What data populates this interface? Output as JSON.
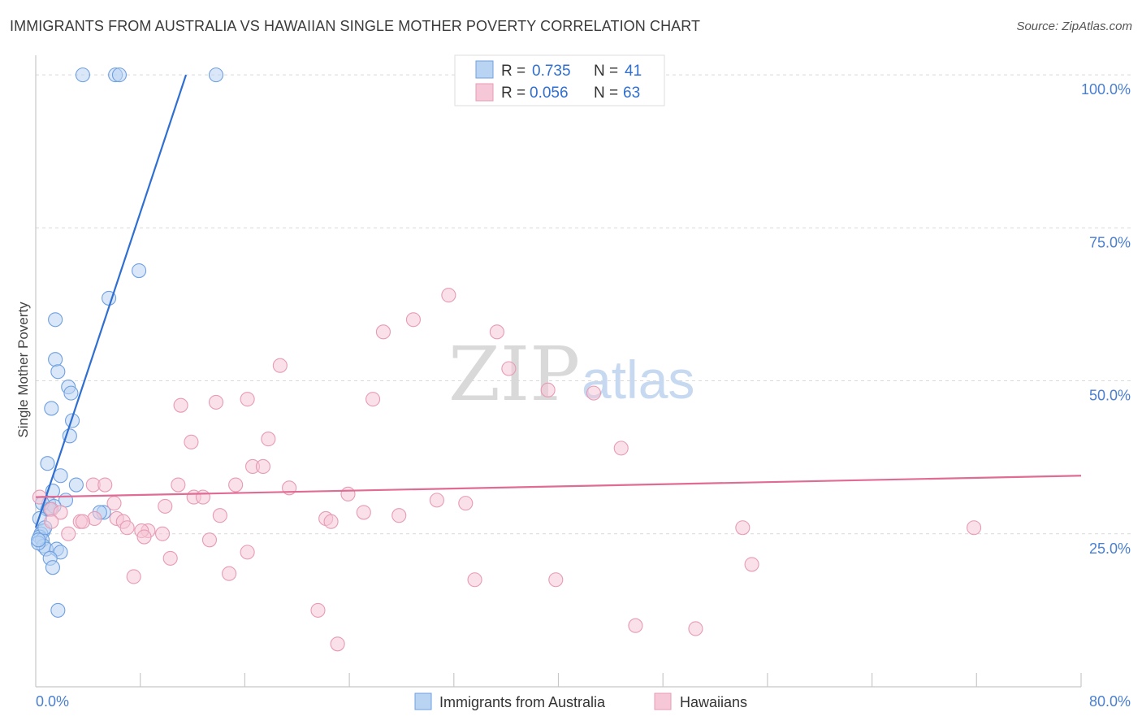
{
  "header": {
    "title": "IMMIGRANTS FROM AUSTRALIA VS HAWAIIAN SINGLE MOTHER POVERTY CORRELATION CHART",
    "source": "Source: ZipAtlas.com"
  },
  "watermark": {
    "zip": "ZIP",
    "atlas": "atlas"
  },
  "chart_data": {
    "type": "scatter",
    "title": "IMMIGRANTS FROM AUSTRALIA VS HAWAIIAN SINGLE MOTHER POVERTY CORRELATION CHART",
    "xlabel": "",
    "ylabel": "Single Mother Poverty",
    "xlim": [
      0,
      80
    ],
    "ylim": [
      0,
      104
    ],
    "x_tick_labels": {
      "left": "0.0%",
      "right": "80.0%"
    },
    "y_ticks": [
      {
        "value": 25,
        "label": "25.0%"
      },
      {
        "value": 50,
        "label": "50.0%"
      },
      {
        "value": 75,
        "label": "75.0%"
      },
      {
        "value": 100,
        "label": "100.0%"
      }
    ],
    "grid": true,
    "legend_position": "top-center",
    "stats_legend": [
      {
        "r_label": "R =",
        "r_value": "0.735",
        "n_label": "N =",
        "n_value": "41"
      },
      {
        "r_label": "R =",
        "r_value": "0.056",
        "n_label": "N =",
        "n_value": "63"
      }
    ],
    "series": [
      {
        "name": "Immigrants from Australia",
        "color": "#6fa0e0",
        "fill": "#b9d3f3",
        "trend_color": "#2f6fd1",
        "trend": {
          "x0": 0,
          "y0": 26,
          "x1": 11.5,
          "y1": 100
        },
        "points": [
          [
            3.6,
            100
          ],
          [
            6.1,
            100
          ],
          [
            6.4,
            100
          ],
          [
            13.8,
            100
          ],
          [
            7.9,
            68
          ],
          [
            5.6,
            63.5
          ],
          [
            1.5,
            60
          ],
          [
            1.5,
            53.5
          ],
          [
            1.7,
            51.5
          ],
          [
            2.5,
            49
          ],
          [
            2.7,
            48
          ],
          [
            1.2,
            45.5
          ],
          [
            2.8,
            43.5
          ],
          [
            2.6,
            41
          ],
          [
            0.9,
            36.5
          ],
          [
            1.9,
            34.5
          ],
          [
            3.1,
            33
          ],
          [
            1.3,
            32
          ],
          [
            2.3,
            30.5
          ],
          [
            1.0,
            30
          ],
          [
            0.9,
            29
          ],
          [
            1.4,
            29.5
          ],
          [
            0.3,
            27.5
          ],
          [
            5.2,
            28.5
          ],
          [
            0.6,
            25.5
          ],
          [
            0.4,
            25
          ],
          [
            0.3,
            24.5
          ],
          [
            0.5,
            24
          ],
          [
            0.6,
            23
          ],
          [
            0.8,
            22.5
          ],
          [
            1.6,
            22.5
          ],
          [
            1.9,
            22
          ],
          [
            1.1,
            21
          ],
          [
            1.3,
            19.5
          ],
          [
            1.7,
            12.5
          ],
          [
            4.9,
            28.5
          ],
          [
            0.2,
            23.5
          ],
          [
            0.7,
            26
          ],
          [
            0.5,
            30
          ],
          [
            1.1,
            29
          ],
          [
            0.2,
            24
          ]
        ]
      },
      {
        "name": "Hawaiians",
        "color": "#e79bb4",
        "fill": "#f6c7d6",
        "trend_color": "#e06b94",
        "trend": {
          "x0": 0,
          "y0": 31,
          "x1": 80,
          "y1": 34.5
        },
        "points": [
          [
            31.6,
            64
          ],
          [
            28.9,
            60
          ],
          [
            26.6,
            58
          ],
          [
            35.3,
            58
          ],
          [
            18.7,
            52.5
          ],
          [
            36.2,
            52
          ],
          [
            39.2,
            48.5
          ],
          [
            42.7,
            48
          ],
          [
            16.2,
            47
          ],
          [
            25.8,
            47
          ],
          [
            11.1,
            46
          ],
          [
            13.8,
            46.5
          ],
          [
            11.9,
            40
          ],
          [
            17.8,
            40.5
          ],
          [
            44.8,
            39
          ],
          [
            16.6,
            36
          ],
          [
            17.4,
            36
          ],
          [
            4.4,
            33
          ],
          [
            5.3,
            33
          ],
          [
            10.9,
            33
          ],
          [
            15.3,
            33
          ],
          [
            19.4,
            32.5
          ],
          [
            23.9,
            31.5
          ],
          [
            12.1,
            31
          ],
          [
            12.8,
            31
          ],
          [
            30.7,
            30.5
          ],
          [
            32.9,
            30
          ],
          [
            6.0,
            30
          ],
          [
            9.9,
            29.5
          ],
          [
            1.2,
            29
          ],
          [
            1.9,
            28.5
          ],
          [
            14.1,
            28
          ],
          [
            25.1,
            28.5
          ],
          [
            27.8,
            28
          ],
          [
            22.2,
            27.5
          ],
          [
            22.6,
            27
          ],
          [
            4.5,
            27.5
          ],
          [
            6.2,
            27.5
          ],
          [
            3.4,
            27
          ],
          [
            3.6,
            27
          ],
          [
            6.7,
            27
          ],
          [
            1.2,
            27
          ],
          [
            7.0,
            26
          ],
          [
            8.6,
            25.5
          ],
          [
            8.1,
            25.5
          ],
          [
            9.7,
            25
          ],
          [
            2.5,
            25
          ],
          [
            8.3,
            24.5
          ],
          [
            13.3,
            24
          ],
          [
            16.2,
            22
          ],
          [
            10.3,
            21
          ],
          [
            54.1,
            26
          ],
          [
            71.8,
            26
          ],
          [
            54.8,
            20
          ],
          [
            7.5,
            18
          ],
          [
            14.8,
            18.5
          ],
          [
            33.6,
            17.5
          ],
          [
            39.8,
            17.5
          ],
          [
            21.6,
            12.5
          ],
          [
            45.9,
            10
          ],
          [
            50.5,
            9.5
          ],
          [
            23.1,
            7
          ],
          [
            0.3,
            31
          ]
        ]
      }
    ]
  }
}
